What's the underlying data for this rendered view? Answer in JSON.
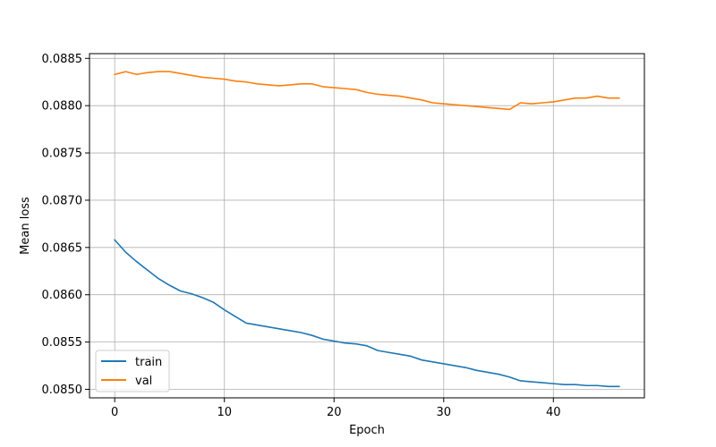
{
  "chart_data": {
    "type": "line",
    "title": "",
    "xlabel": "Epoch",
    "ylabel": "Mean loss",
    "xlim": [
      -2.3,
      48.3
    ],
    "ylim": [
      0.08491,
      0.08855
    ],
    "xticks": [
      0,
      10,
      20,
      30,
      40
    ],
    "yticks": [
      0.085,
      0.0855,
      0.086,
      0.0865,
      0.087,
      0.0875,
      0.088,
      0.0885
    ],
    "ytick_labels": [
      "0.0850",
      "0.0855",
      "0.0860",
      "0.0865",
      "0.0870",
      "0.0875",
      "0.0880",
      "0.0885"
    ],
    "grid": true,
    "legend_position": "lower-left",
    "x": [
      0,
      1,
      2,
      3,
      4,
      5,
      6,
      7,
      8,
      9,
      10,
      11,
      12,
      13,
      14,
      15,
      16,
      17,
      18,
      19,
      20,
      21,
      22,
      23,
      24,
      25,
      26,
      27,
      28,
      29,
      30,
      31,
      32,
      33,
      34,
      35,
      36,
      37,
      38,
      39,
      40,
      41,
      42,
      43,
      44,
      45,
      46
    ],
    "series": [
      {
        "name": "train",
        "color": "#1f77b4",
        "values": [
          0.08658,
          0.08645,
          0.08635,
          0.08626,
          0.08617,
          0.0861,
          0.08604,
          0.08601,
          0.08597,
          0.08592,
          0.08584,
          0.08577,
          0.0857,
          0.08568,
          0.08566,
          0.08564,
          0.08562,
          0.0856,
          0.08557,
          0.08553,
          0.08551,
          0.08549,
          0.08548,
          0.08546,
          0.08541,
          0.08539,
          0.08537,
          0.08535,
          0.08531,
          0.08529,
          0.08527,
          0.08525,
          0.08523,
          0.0852,
          0.08518,
          0.08516,
          0.08513,
          0.08509,
          0.08508,
          0.08507,
          0.08506,
          0.08505,
          0.08505,
          0.08504,
          0.08504,
          0.08503,
          0.08503
        ]
      },
      {
        "name": "val",
        "color": "#ff7f0e",
        "values": [
          0.08833,
          0.08836,
          0.08833,
          0.08835,
          0.08836,
          0.08836,
          0.08834,
          0.08832,
          0.0883,
          0.08829,
          0.08828,
          0.08826,
          0.08825,
          0.08823,
          0.08822,
          0.08821,
          0.08822,
          0.08823,
          0.08823,
          0.0882,
          0.08819,
          0.08818,
          0.08817,
          0.08814,
          0.08812,
          0.08811,
          0.0881,
          0.08808,
          0.08806,
          0.08803,
          0.08802,
          0.08801,
          0.088,
          0.08799,
          0.08798,
          0.08797,
          0.08796,
          0.08803,
          0.08802,
          0.08803,
          0.08804,
          0.08806,
          0.08808,
          0.08808,
          0.0881,
          0.08808,
          0.08808
        ]
      }
    ]
  }
}
